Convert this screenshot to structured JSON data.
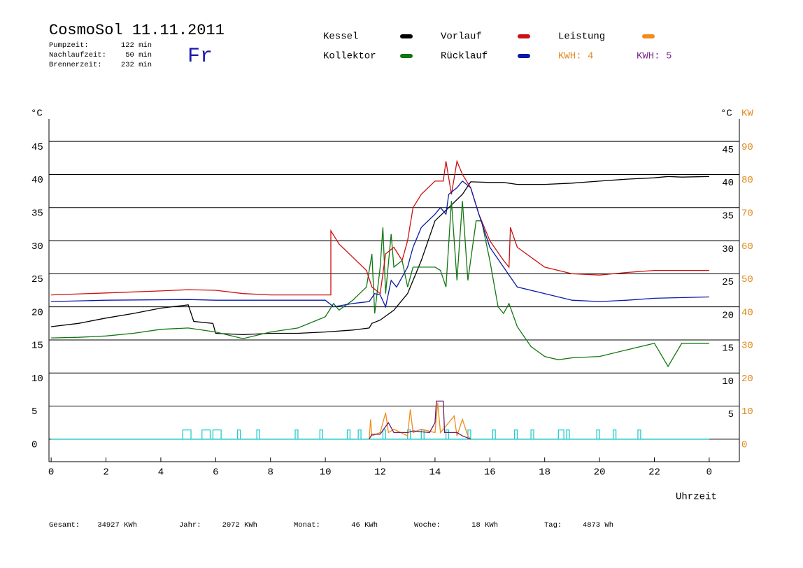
{
  "chart_data": {
    "type": "line",
    "title": "CosmoSol 11.11.2011",
    "weekday": "Fr",
    "info": [
      {
        "label": "Pumpzeit:",
        "value": "122 min"
      },
      {
        "label": "Nachlaufzeit:",
        "value": "50 min"
      },
      {
        "label": "Brennerzeit:",
        "value": "232 min"
      }
    ],
    "kwh_labels": [
      {
        "text": "KWH: 4",
        "color": "#e08a1e"
      },
      {
        "text": "KWH: 5",
        "color": "#7a2a8a"
      }
    ],
    "y_label": "°C",
    "y2_label_c": "°C",
    "y2_label": "KW",
    "x_label": "Uhrzeit",
    "xlim": [
      -0.08,
      25.1
    ],
    "xticks": [
      0,
      2,
      4,
      6,
      8,
      10,
      12,
      14,
      16,
      18,
      20,
      22,
      {
        "value": 24,
        "label": "0"
      }
    ],
    "ylim": [
      -3.4,
      48.4
    ],
    "yticks": [
      0,
      5,
      10,
      15,
      20,
      25,
      30,
      35,
      40,
      45
    ],
    "y_right_ticks": [
      5,
      10,
      15,
      20,
      25,
      30,
      35,
      40,
      45
    ],
    "y2lim": [
      -6.8,
      96.8
    ],
    "y2ticks": [
      0,
      10,
      20,
      30,
      40,
      50,
      60,
      70,
      80,
      90
    ],
    "grid": true,
    "series": [
      {
        "name": "Kessel",
        "color": "#000000",
        "x": [
          0,
          1,
          2,
          3,
          4,
          5,
          5.2,
          5.9,
          6.0,
          7,
          8,
          9,
          10,
          11,
          11.6,
          11.7,
          12,
          12.5,
          13,
          13.5,
          14,
          14.5,
          15,
          15.3,
          16,
          16.5,
          17,
          18,
          19,
          20,
          21,
          22,
          22.5,
          23,
          24
        ],
        "values": [
          17.0,
          17.5,
          18.3,
          19.0,
          19.8,
          20.3,
          17.8,
          17.5,
          16.0,
          15.8,
          16.0,
          16.0,
          16.2,
          16.5,
          16.8,
          17.5,
          18.0,
          19.5,
          22,
          27,
          33,
          35,
          37,
          38.9,
          38.8,
          38.8,
          38.5,
          38.5,
          38.7,
          39,
          39.3,
          39.5,
          39.7,
          39.6,
          39.7
        ]
      },
      {
        "name": "Kollektor",
        "color": "#117711",
        "x": [
          0,
          1,
          2,
          3,
          4,
          5,
          6,
          7,
          8,
          9,
          10,
          10.3,
          10.5,
          11,
          11.5,
          11.7,
          11.8,
          12,
          12.1,
          12.2,
          12.4,
          12.5,
          12.8,
          13,
          13.2,
          13.5,
          14,
          14.2,
          14.4,
          14.6,
          14.8,
          15,
          15.2,
          15.5,
          15.7,
          16,
          16.3,
          16.5,
          16.7,
          17,
          17.5,
          18,
          18.5,
          19,
          20,
          21,
          22,
          22.5,
          23,
          24
        ],
        "values": [
          15.3,
          15.4,
          15.6,
          16,
          16.6,
          16.8,
          16.2,
          15.2,
          16.2,
          16.8,
          18.5,
          20.5,
          19.5,
          21,
          23,
          28,
          19,
          26,
          32,
          22,
          31,
          26,
          27,
          23,
          26,
          26,
          26,
          25.5,
          23,
          36,
          24,
          36,
          24,
          33,
          33,
          27,
          20,
          19,
          20.5,
          17,
          14,
          12.5,
          12,
          12.3,
          12.5,
          13.5,
          14.5,
          11,
          14.5,
          14.5
        ]
      },
      {
        "name": "Vorlauf",
        "color": "#cc1111",
        "x": [
          0,
          2,
          4,
          5,
          6,
          7,
          8,
          10.2,
          10.2,
          10.5,
          11,
          11.5,
          11.7,
          12,
          12.2,
          12.5,
          12.8,
          13,
          13.2,
          13.5,
          14,
          14.3,
          14.4,
          14.6,
          14.8,
          15,
          15.3,
          15.6,
          16,
          16.5,
          16.7,
          16.75,
          17,
          18,
          19,
          20,
          21,
          22,
          24
        ],
        "values": [
          21.8,
          22.1,
          22.4,
          22.6,
          22.5,
          22.0,
          21.8,
          21.8,
          31.5,
          29.5,
          27.5,
          25.5,
          23,
          22,
          28,
          29,
          27,
          30,
          35,
          37,
          39,
          39,
          42,
          37,
          42,
          40,
          38,
          34,
          30,
          27,
          26,
          32,
          29,
          26,
          25,
          24.8,
          25.2,
          25.5,
          25.5
        ]
      },
      {
        "name": "Rücklauf",
        "color": "#0a1aa8",
        "x": [
          0,
          2,
          5,
          6,
          8,
          10,
          10.3,
          11,
          11.6,
          11.8,
          12,
          12.2,
          12.4,
          12.6,
          13,
          13.2,
          13.5,
          14,
          14.2,
          14.4,
          14.5,
          14.8,
          15,
          15.3,
          15.6,
          16,
          16.5,
          17,
          18,
          19,
          20,
          21,
          22,
          24
        ],
        "values": [
          20.8,
          21.0,
          21.1,
          21.0,
          21.0,
          21.0,
          20,
          20.5,
          20.8,
          22,
          21.8,
          20,
          24,
          23,
          26,
          29,
          32,
          34,
          35,
          34,
          37,
          38,
          39,
          38,
          34,
          29,
          26,
          23,
          22,
          21,
          20.8,
          21,
          21.3,
          21.5
        ]
      },
      {
        "name": "Leistung",
        "color": "#f08c1a",
        "axis": "y2",
        "x": [
          11.6,
          11.65,
          11.7,
          12,
          12.2,
          12.3,
          12.5,
          13,
          13.1,
          13.2,
          13.5,
          14,
          14.1,
          14.2,
          14.5,
          14.7,
          14.8,
          15,
          15.2,
          15.3
        ],
        "values": [
          0,
          6,
          1,
          2,
          8,
          2,
          3,
          1,
          9,
          2,
          3,
          2,
          11,
          2,
          5,
          7,
          1,
          6,
          1,
          0
        ]
      },
      {
        "name": "KWH",
        "color": "#6a1a6a",
        "axis": "y2",
        "x": [
          11.6,
          11.7,
          12,
          12.3,
          12.5,
          13,
          13.2,
          13.8,
          14,
          14.05,
          14.3,
          14.35,
          14.8,
          15,
          15.3
        ],
        "values": [
          0,
          1.5,
          1.5,
          5,
          2,
          2,
          2.5,
          2,
          5,
          11.5,
          11.5,
          2,
          2,
          1,
          0
        ]
      }
    ],
    "pump": {
      "color": "#22cccc",
      "height": 1.4,
      "intervals": [
        [
          4.8,
          5.1
        ],
        [
          5.5,
          5.8
        ],
        [
          5.9,
          6.2
        ],
        [
          6.8,
          6.9
        ],
        [
          7.5,
          7.6
        ],
        [
          8.9,
          9.0
        ],
        [
          9.8,
          9.9
        ],
        [
          10.8,
          10.9
        ],
        [
          11.2,
          11.3
        ],
        [
          12.1,
          12.2
        ],
        [
          13.0,
          13.1
        ],
        [
          13.5,
          13.6
        ],
        [
          14.4,
          14.5
        ],
        [
          15.2,
          15.3
        ],
        [
          16.1,
          16.2
        ],
        [
          16.9,
          17.0
        ],
        [
          17.5,
          17.6
        ],
        [
          18.5,
          18.7
        ],
        [
          18.8,
          18.9
        ],
        [
          19.9,
          20.0
        ],
        [
          20.5,
          20.6
        ],
        [
          21.4,
          21.5
        ]
      ]
    },
    "stats": [
      {
        "label": "Gesamt:",
        "value": "34927 KWh"
      },
      {
        "label": "Jahr:",
        "value": "2072 KWh"
      },
      {
        "label": "Monat:",
        "value": "46 KWh"
      },
      {
        "label": "Woche:",
        "value": "18 KWh"
      },
      {
        "label": "Tag:",
        "value": "4873 Wh"
      }
    ]
  }
}
